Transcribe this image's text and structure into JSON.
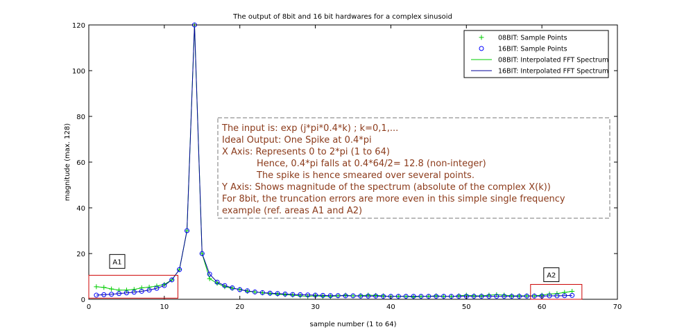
{
  "chart_data": {
    "type": "line",
    "title": "The output of 8bit and 16 bit hardwares for a complex sinusoid",
    "xlabel": "sample number (1 to 64)",
    "ylabel": "magnitude (max. 128)",
    "xlim": [
      0,
      70
    ],
    "ylim": [
      0,
      120
    ],
    "xticks": [
      0,
      10,
      20,
      30,
      40,
      50,
      60,
      70
    ],
    "yticks": [
      0,
      20,
      40,
      60,
      80,
      100,
      120
    ],
    "legend_position": "top-right",
    "x": [
      1,
      2,
      3,
      4,
      5,
      6,
      7,
      8,
      9,
      10,
      11,
      12,
      13,
      14,
      15,
      16,
      17,
      18,
      19,
      20,
      21,
      22,
      23,
      24,
      25,
      26,
      27,
      28,
      29,
      30,
      31,
      32,
      33,
      34,
      35,
      36,
      37,
      38,
      39,
      40,
      41,
      42,
      43,
      44,
      45,
      46,
      47,
      48,
      49,
      50,
      51,
      52,
      53,
      54,
      55,
      56,
      57,
      58,
      59,
      60,
      61,
      62,
      63,
      64
    ],
    "series": [
      {
        "name": "08BIT: Sample Points",
        "kind": "markers",
        "marker": "plus",
        "color": "#00cc00",
        "values": [
          5.5,
          5.2,
          4.5,
          4,
          4,
          4.3,
          5,
          5.3,
          5.8,
          6.5,
          8.5,
          13,
          30,
          120,
          20,
          9,
          7,
          5.5,
          4.8,
          4.3,
          3.5,
          3.2,
          2.8,
          2.5,
          2.2,
          2,
          1.8,
          1.5,
          1.3,
          1.5,
          1.3,
          1.2,
          1.5,
          1.8,
          1.5,
          1.6,
          1.8,
          1.7,
          1.5,
          1.2,
          1.3,
          1.2,
          1,
          1.2,
          1.3,
          1.5,
          1.3,
          1.2,
          1.5,
          1.8,
          1.5,
          1.5,
          1.8,
          2,
          1.8,
          1.5,
          1.5,
          1.5,
          1.5,
          1.8,
          2.3,
          2.5,
          3,
          3.5
        ]
      },
      {
        "name": "16BIT: Sample Points",
        "kind": "markers",
        "marker": "circle",
        "color": "#0000ff",
        "values": [
          1.8,
          2,
          2.2,
          2.5,
          2.8,
          3.1,
          3.5,
          4,
          4.8,
          6,
          8.5,
          13,
          30,
          120,
          20,
          11,
          7.5,
          6,
          5,
          4.2,
          3.7,
          3.2,
          2.9,
          2.7,
          2.5,
          2.3,
          2.1,
          2,
          1.9,
          1.8,
          1.7,
          1.6,
          1.6,
          1.5,
          1.5,
          1.4,
          1.4,
          1.4,
          1.3,
          1.3,
          1.3,
          1.3,
          1.3,
          1.3,
          1.3,
          1.3,
          1.3,
          1.3,
          1.3,
          1.3,
          1.3,
          1.3,
          1.3,
          1.3,
          1.3,
          1.3,
          1.3,
          1.4,
          1.4,
          1.4,
          1.5,
          1.5,
          1.6,
          1.7
        ]
      },
      {
        "name": "08BIT: Interpolated FFT Spectrum",
        "kind": "line",
        "color": "#00cc00",
        "values": [
          5.5,
          5.2,
          4.5,
          4,
          4,
          4.3,
          5,
          5.3,
          5.8,
          6.5,
          8.5,
          13,
          30,
          120,
          20,
          9,
          7,
          5.5,
          4.8,
          4.3,
          3.5,
          3.2,
          2.8,
          2.5,
          2.2,
          2,
          1.8,
          1.5,
          1.3,
          1.5,
          1.3,
          1.2,
          1.5,
          1.8,
          1.5,
          1.6,
          1.8,
          1.7,
          1.5,
          1.2,
          1.3,
          1.2,
          1,
          1.2,
          1.3,
          1.5,
          1.3,
          1.2,
          1.5,
          1.8,
          1.5,
          1.5,
          1.8,
          2,
          1.8,
          1.5,
          1.5,
          1.5,
          1.5,
          1.8,
          2.3,
          2.5,
          3,
          3.5
        ]
      },
      {
        "name": "16BIT: Interpolated FFT Spectrum",
        "kind": "line",
        "color": "#000099",
        "values": [
          1.8,
          2,
          2.2,
          2.5,
          2.8,
          3.1,
          3.5,
          4,
          4.8,
          6,
          8.5,
          13,
          30,
          120,
          20,
          11,
          7.5,
          6,
          5,
          4.2,
          3.7,
          3.2,
          2.9,
          2.7,
          2.5,
          2.3,
          2.1,
          2,
          1.9,
          1.8,
          1.7,
          1.6,
          1.6,
          1.5,
          1.5,
          1.4,
          1.4,
          1.4,
          1.3,
          1.3,
          1.3,
          1.3,
          1.3,
          1.3,
          1.3,
          1.3,
          1.3,
          1.3,
          1.3,
          1.3,
          1.3,
          1.3,
          1.3,
          1.3,
          1.3,
          1.3,
          1.3,
          1.4,
          1.4,
          1.4,
          1.5,
          1.5,
          1.6,
          1.7
        ]
      }
    ],
    "annotation_lines": [
      "The input is: exp (j*pi*0.4*k) ; k=0,1,...",
      "Ideal Output: One Spike at 0.4*pi",
      "X Axis: Represents 0 to 2*pi (1 to 64)",
      "Hence, 0.4*pi falls at 0.4*64/2= 12.8 (non-integer)",
      "The spike is hence smeared over several points.",
      "Y Axis: Shows magnitude of the spectrum (absolute of the complex X(k))",
      "For 8bit, the truncation errors are more even in this simple single frequency",
      "example (ref. areas A1 and A2)"
    ],
    "annotation_indent": [
      false,
      false,
      false,
      true,
      true,
      false,
      false,
      false
    ],
    "regions": [
      {
        "label": "A1",
        "x_range": [
          0,
          11.8
        ],
        "y_range": [
          0.5,
          10.5
        ]
      },
      {
        "label": "A2",
        "x_range": [
          58.5,
          65.3
        ],
        "y_range": [
          0,
          6.5
        ]
      }
    ],
    "region_color": "#cc0000",
    "annotation_color": "#8b3a1a"
  }
}
